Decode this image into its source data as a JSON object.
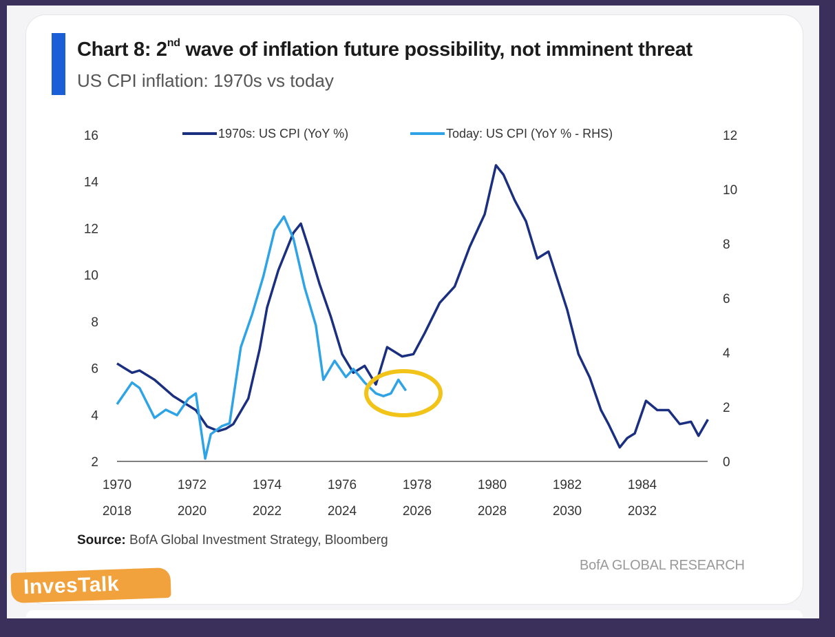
{
  "header": {
    "title_prefix": "Chart 8: 2",
    "title_sup": "nd",
    "title_suffix": " wave of inflation future possibility, not imminent threat",
    "subtitle": "US CPI inflation: 1970s vs today"
  },
  "footer": {
    "source_label": "Source:",
    "source_text": " BofA Global Investment Strategy, Bloomberg",
    "brand": "BofA GLOBAL RESEARCH",
    "watermark": "InvesTalk"
  },
  "colors": {
    "series_1970s": "#1a2f80",
    "series_today": "#2ea3e6",
    "highlight": "#f2c318",
    "accent": "#1a5fd6"
  },
  "chart_data": {
    "type": "line",
    "legend": {
      "placement": "top-center"
    },
    "grid": false,
    "y_left": {
      "ylim": [
        2,
        16
      ],
      "ticks": [
        "2",
        "4",
        "6",
        "8",
        "10",
        "12",
        "14",
        "16"
      ]
    },
    "y_right": {
      "ylim": [
        0,
        12
      ],
      "ticks": [
        "0",
        "2",
        "4",
        "6",
        "8",
        "10",
        "12"
      ]
    },
    "x_top_labels": [
      "1970",
      "1972",
      "1974",
      "1976",
      "1978",
      "1980",
      "1982",
      "1984"
    ],
    "x_bottom_labels": [
      "2018",
      "2020",
      "2022",
      "2024",
      "2026",
      "2028",
      "2030",
      "2032"
    ],
    "x_range_1970s": [
      1970,
      1985.75
    ],
    "series": [
      {
        "name": "1970s: US CPI (YoY %)",
        "axis": "left",
        "x": [
          1970.0,
          1970.2,
          1970.4,
          1970.6,
          1971.0,
          1971.5,
          1971.9,
          1972.1,
          1972.4,
          1972.7,
          1972.9,
          1973.1,
          1973.5,
          1973.8,
          1974.0,
          1974.3,
          1974.5,
          1974.7,
          1974.9,
          1975.1,
          1975.4,
          1975.7,
          1976.0,
          1976.3,
          1976.6,
          1976.9,
          1977.2,
          1977.6,
          1977.9,
          1978.2,
          1978.6,
          1979.0,
          1979.4,
          1979.8,
          1980.1,
          1980.3,
          1980.6,
          1980.9,
          1981.2,
          1981.5,
          1981.7,
          1982.0,
          1982.3,
          1982.6,
          1982.9,
          1983.1,
          1983.4,
          1983.6,
          1983.8,
          1984.1,
          1984.4,
          1984.7,
          1985.0,
          1985.3,
          1985.5,
          1985.75
        ],
        "values": [
          6.2,
          6.0,
          5.8,
          5.9,
          5.5,
          4.8,
          4.4,
          4.2,
          3.5,
          3.3,
          3.4,
          3.6,
          4.7,
          6.8,
          8.6,
          10.2,
          11.0,
          11.8,
          12.2,
          11.2,
          9.6,
          8.2,
          6.6,
          5.8,
          6.1,
          5.3,
          6.9,
          6.5,
          6.6,
          7.5,
          8.8,
          9.5,
          11.2,
          12.6,
          14.7,
          14.3,
          13.2,
          12.3,
          10.7,
          11.0,
          10.0,
          8.5,
          6.6,
          5.6,
          4.2,
          3.6,
          2.6,
          3.0,
          3.2,
          4.6,
          4.2,
          4.2,
          3.6,
          3.7,
          3.1,
          3.8
        ]
      },
      {
        "name": "Today: US CPI (YoY % - RHS)",
        "axis": "right",
        "x": [
          2018.0,
          2018.4,
          2018.6,
          2019.0,
          2019.3,
          2019.6,
          2019.9,
          2020.1,
          2020.35,
          2020.5,
          2020.8,
          2021.0,
          2021.3,
          2021.6,
          2021.9,
          2022.2,
          2022.45,
          2022.7,
          2023.0,
          2023.3,
          2023.5,
          2023.8,
          2024.1,
          2024.3,
          2024.6,
          2024.9,
          2025.1,
          2025.3,
          2025.5,
          2025.7
        ],
        "values": [
          2.1,
          2.9,
          2.7,
          1.6,
          1.9,
          1.7,
          2.3,
          2.5,
          0.1,
          1.0,
          1.3,
          1.4,
          4.2,
          5.4,
          6.8,
          8.5,
          9.0,
          8.2,
          6.4,
          5.0,
          3.0,
          3.7,
          3.1,
          3.4,
          2.9,
          2.5,
          2.4,
          2.5,
          3.0,
          2.6
        ]
      }
    ]
  }
}
